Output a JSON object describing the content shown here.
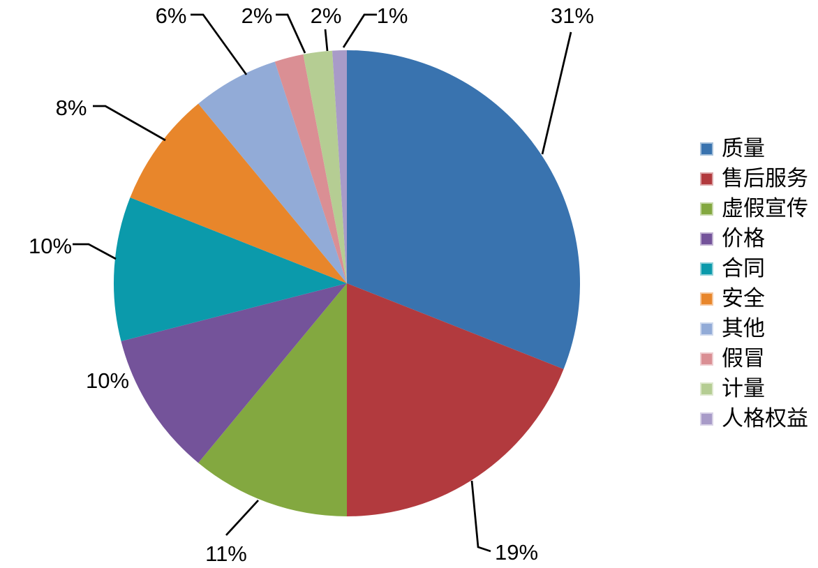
{
  "chart_data": {
    "type": "pie",
    "title": "",
    "categories": [
      "质量",
      "售后服务",
      "虚假宣传",
      "价格",
      "合同",
      "安全",
      "其他",
      "假冒",
      "计量",
      "人格权益"
    ],
    "values": [
      31,
      19,
      11,
      10,
      10,
      8,
      6,
      2,
      2,
      1
    ],
    "unit": "%",
    "labels": [
      "31%",
      "19%",
      "11%",
      "10%",
      "10%",
      "8%",
      "6%",
      "2%",
      "2%",
      "1%"
    ],
    "colors": [
      "#3973AF",
      "#B23A3E",
      "#83A840",
      "#74539A",
      "#0B9AAB",
      "#E8862B",
      "#92ABD7",
      "#DA8F94",
      "#B5CD93",
      "#A89BC8"
    ],
    "legend_position": "right",
    "start_angle": "12-oclock",
    "direction": "clockwise",
    "background_color": "#FFFFFF",
    "label_color": "#000000",
    "leader_line_color": "#000000"
  }
}
